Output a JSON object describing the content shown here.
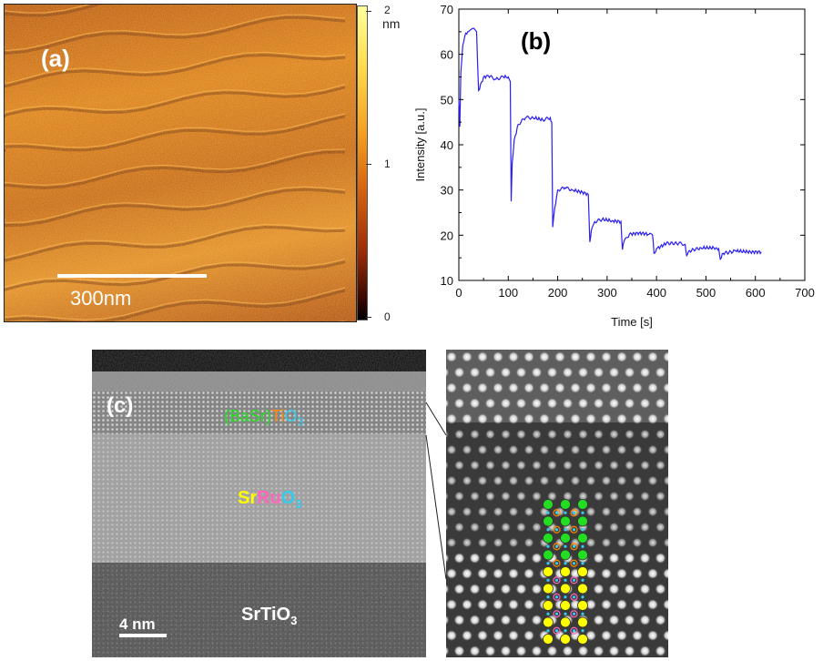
{
  "panel_a": {
    "label": "(a)",
    "scale_bar": "300nm",
    "colorbar": {
      "unit": "nm",
      "tick_labels": [
        "2",
        "1",
        "0"
      ]
    },
    "colors": {
      "low": "#000000",
      "mid": "#d66510",
      "high": "#ffff9a"
    }
  },
  "panel_b": {
    "label": "(b)"
  },
  "chart_data": {
    "type": "line",
    "xlabel": "Time [s]",
    "ylabel": "Intensity [a.u.]",
    "xlim": [
      0,
      700
    ],
    "ylim": [
      10,
      70
    ],
    "xticks": [
      0,
      100,
      200,
      300,
      400,
      500,
      600,
      700
    ],
    "yticks": [
      10,
      20,
      30,
      40,
      50,
      60,
      70
    ],
    "line_color": "#2a1ef0",
    "x": [
      0,
      2,
      4,
      8,
      12,
      18,
      25,
      32,
      36,
      38,
      40,
      50,
      60,
      75,
      90,
      100,
      104,
      106,
      108,
      112,
      120,
      135,
      150,
      170,
      185,
      188,
      190,
      194,
      200,
      215,
      230,
      250,
      262,
      265,
      268,
      275,
      290,
      310,
      328,
      331,
      334,
      345,
      365,
      385,
      392,
      395,
      400,
      420,
      445,
      458,
      461,
      465,
      490,
      520,
      526,
      529,
      535,
      560,
      590,
      612
    ],
    "y": [
      50,
      44,
      56,
      62,
      64,
      65,
      65.5,
      65.5,
      65,
      58,
      52,
      55,
      55.2,
      54.5,
      55,
      55,
      54,
      27.5,
      36,
      41,
      44.5,
      46,
      46,
      45.5,
      46,
      45,
      21.8,
      26,
      30,
      30.5,
      30,
      29.5,
      29,
      18.5,
      21,
      23,
      23.5,
      23.2,
      23,
      16.8,
      18.5,
      20.2,
      20.5,
      20.2,
      20,
      16,
      17,
      18.2,
      18.2,
      18,
      15.5,
      16.5,
      17.2,
      17.2,
      17,
      14.7,
      16,
      16.5,
      16.3,
      16.3
    ]
  },
  "panel_c": {
    "label": "(c)",
    "scale_bar": "4 nm",
    "layer_bst": {
      "p1": "(BaSr)",
      "p2": "Ti",
      "p3": "O",
      "p3_sub": "3"
    },
    "layer_sro": {
      "p1": "Sr",
      "p2": "Ru",
      "p3": "O",
      "p3_sub": "3"
    },
    "layer_sto": {
      "main": "SrTiO",
      "sub": "3"
    },
    "colors": {
      "ba_sr": "#22dd22",
      "ti": "#ff8800",
      "o": "#33ccee",
      "sr": "#ffff00",
      "ru": "#ff66bb"
    }
  }
}
